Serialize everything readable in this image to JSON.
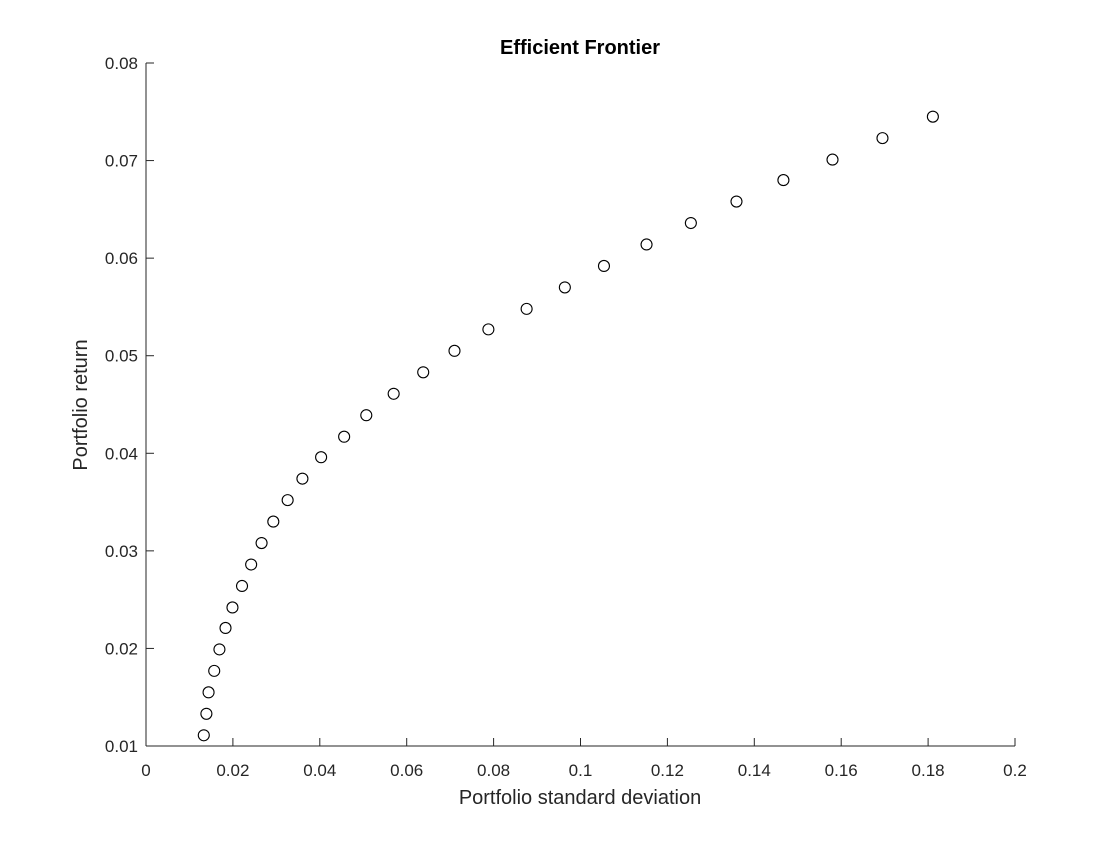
{
  "chart_data": {
    "type": "scatter",
    "title": "Efficient Frontier",
    "xlabel": "Portfolio standard deviation",
    "ylabel": "Portfolio return",
    "xlim": [
      0,
      0.2
    ],
    "ylim": [
      0.01,
      0.08
    ],
    "xticks": [
      0,
      0.02,
      0.04,
      0.06,
      0.08,
      0.1,
      0.12,
      0.14,
      0.16,
      0.18,
      0.2
    ],
    "xtick_labels": [
      "0",
      "0.02",
      "0.04",
      "0.06",
      "0.08",
      "0.1",
      "0.12",
      "0.14",
      "0.16",
      "0.18",
      "0.2"
    ],
    "yticks": [
      0.01,
      0.02,
      0.03,
      0.04,
      0.05,
      0.06,
      0.07,
      0.08
    ],
    "ytick_labels": [
      "0.01",
      "0.02",
      "0.03",
      "0.04",
      "0.05",
      "0.06",
      "0.07",
      "0.08"
    ],
    "grid": false,
    "marker": "open-circle",
    "marker_color": "#000000",
    "axis_color": "#262626",
    "series": [
      {
        "x": [
          0.0133,
          0.0139,
          0.0144,
          0.0157,
          0.0169,
          0.0183,
          0.0199,
          0.0221,
          0.0242,
          0.0266,
          0.0293,
          0.0326,
          0.036,
          0.0403,
          0.0456,
          0.0507,
          0.057,
          0.0638,
          0.071,
          0.0788,
          0.0876,
          0.0964,
          0.1054,
          0.1152,
          0.1254,
          0.1359,
          0.1467,
          0.158,
          0.1695,
          0.1811
        ],
        "y": [
          0.0111,
          0.0133,
          0.0155,
          0.0177,
          0.0199,
          0.0221,
          0.0242,
          0.0264,
          0.0286,
          0.0308,
          0.033,
          0.0352,
          0.0374,
          0.0396,
          0.0417,
          0.0439,
          0.0461,
          0.0483,
          0.0505,
          0.0527,
          0.0548,
          0.057,
          0.0592,
          0.0614,
          0.0636,
          0.0658,
          0.068,
          0.0701,
          0.0723,
          0.0745
        ]
      }
    ]
  }
}
